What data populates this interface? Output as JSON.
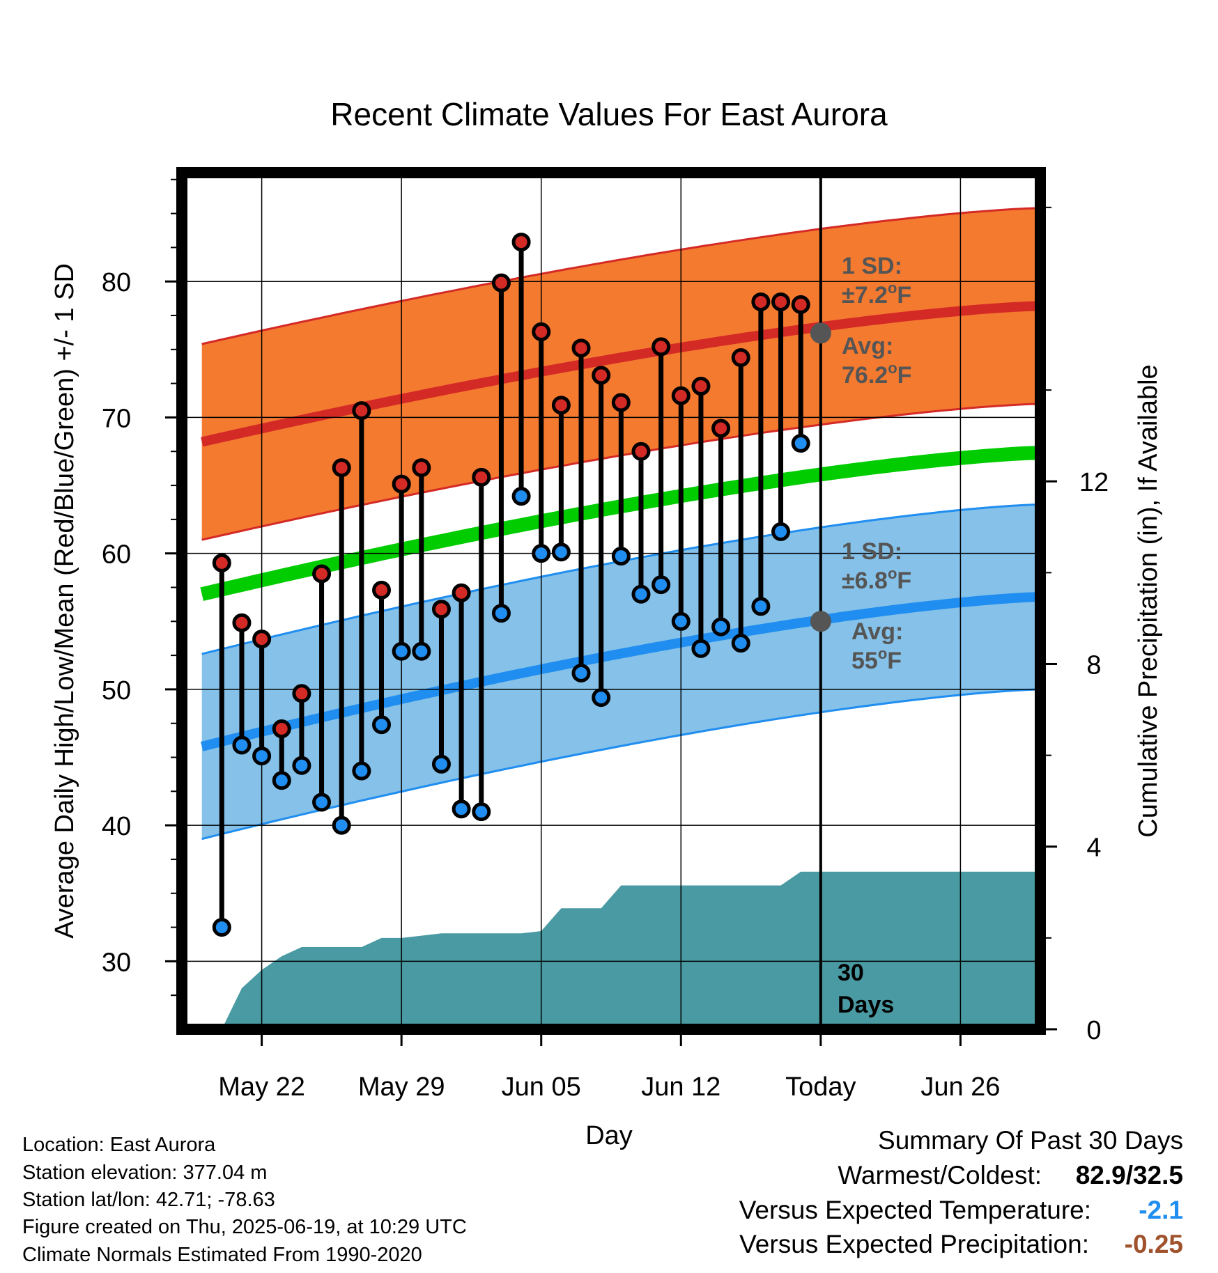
{
  "chart_data": {
    "type": "line",
    "title": "Recent Climate Values For East Aurora",
    "xlabel": "Day",
    "ylabel_left": "Average Daily High/Low/Mean (Red/Blue/Green) +/- 1 SD",
    "ylabel_right": "Cumulative Precipitation (in), If Available",
    "ylim_left": [
      25,
      88
    ],
    "ylim_right": [
      0,
      18.76
    ],
    "yticks_left": [
      "30",
      "40",
      "50",
      "60",
      "70",
      "80"
    ],
    "yticks_right": [
      "0",
      "4",
      "8",
      "12"
    ],
    "xlim": [
      "2025-05-18",
      "2025-06-30"
    ],
    "xticks": [
      {
        "date": "2025-05-22",
        "label": "May 22"
      },
      {
        "date": "2025-05-29",
        "label": "May 29"
      },
      {
        "date": "2025-06-05",
        "label": "Jun 05"
      },
      {
        "date": "2025-06-12",
        "label": "Jun 12"
      },
      {
        "date": "2025-06-19",
        "label": "Today"
      },
      {
        "date": "2025-06-26",
        "label": "Jun 26"
      }
    ],
    "grid": true,
    "normal_high": {
      "start": 68.2,
      "end": 78.2,
      "sd": 7.2,
      "today": 76.2
    },
    "normal_mean": {
      "start": 57.0,
      "end": 67.4
    },
    "normal_low": {
      "start": 45.8,
      "end": 56.8,
      "sd": 6.8,
      "today": 55
    },
    "series": [
      {
        "name": "High",
        "dates": [
          "2025-05-20",
          "2025-05-21",
          "2025-05-22",
          "2025-05-23",
          "2025-05-24",
          "2025-05-25",
          "2025-05-26",
          "2025-05-27",
          "2025-05-28",
          "2025-05-29",
          "2025-05-30",
          "2025-05-31",
          "2025-06-01",
          "2025-06-02",
          "2025-06-03",
          "2025-06-04",
          "2025-06-05",
          "2025-06-06",
          "2025-06-07",
          "2025-06-08",
          "2025-06-09",
          "2025-06-10",
          "2025-06-11",
          "2025-06-12",
          "2025-06-13",
          "2025-06-14",
          "2025-06-15",
          "2025-06-16",
          "2025-06-17",
          "2025-06-18"
        ],
        "values": [
          59.3,
          54.9,
          53.7,
          47.1,
          49.7,
          58.5,
          66.3,
          70.5,
          57.3,
          65.1,
          66.3,
          55.9,
          57.1,
          65.6,
          79.9,
          82.9,
          76.3,
          70.9,
          75.1,
          73.1,
          71.1,
          67.5,
          75.2,
          71.6,
          72.3,
          69.2,
          74.4,
          78.5,
          78.5,
          78.3
        ]
      },
      {
        "name": "Low",
        "dates": [
          "2025-05-20",
          "2025-05-21",
          "2025-05-22",
          "2025-05-23",
          "2025-05-24",
          "2025-05-25",
          "2025-05-26",
          "2025-05-27",
          "2025-05-28",
          "2025-05-29",
          "2025-05-30",
          "2025-05-31",
          "2025-06-01",
          "2025-06-02",
          "2025-06-03",
          "2025-06-04",
          "2025-06-05",
          "2025-06-06",
          "2025-06-07",
          "2025-06-08",
          "2025-06-09",
          "2025-06-10",
          "2025-06-11",
          "2025-06-12",
          "2025-06-13",
          "2025-06-14",
          "2025-06-15",
          "2025-06-16",
          "2025-06-17",
          "2025-06-18"
        ],
        "values": [
          32.5,
          45.9,
          45.1,
          43.3,
          44.4,
          41.7,
          40.0,
          44.0,
          47.4,
          52.8,
          52.8,
          44.5,
          41.2,
          41.0,
          55.6,
          64.2,
          60.0,
          60.1,
          51.2,
          49.4,
          59.8,
          57.0,
          57.7,
          55.0,
          53.0,
          54.6,
          53.4,
          56.1,
          61.6,
          68.1
        ]
      },
      {
        "name": "Cumulative Precipitation",
        "dates": [
          "2025-05-20",
          "2025-05-21",
          "2025-05-22",
          "2025-05-23",
          "2025-05-24",
          "2025-05-25",
          "2025-05-26",
          "2025-05-27",
          "2025-05-28",
          "2025-05-29",
          "2025-05-30",
          "2025-05-31",
          "2025-06-01",
          "2025-06-02",
          "2025-06-03",
          "2025-06-04",
          "2025-06-05",
          "2025-06-06",
          "2025-06-07",
          "2025-06-08",
          "2025-06-09",
          "2025-06-10",
          "2025-06-11",
          "2025-06-12",
          "2025-06-13",
          "2025-06-14",
          "2025-06-15",
          "2025-06-16",
          "2025-06-17",
          "2025-06-18",
          "2025-06-19",
          "2025-06-30"
        ],
        "values": [
          0.0,
          0.9,
          1.3,
          1.6,
          1.8,
          1.8,
          1.8,
          1.8,
          2.0,
          2.0,
          2.05,
          2.1,
          2.1,
          2.1,
          2.1,
          2.1,
          2.15,
          2.65,
          2.65,
          2.65,
          3.15,
          3.15,
          3.15,
          3.15,
          3.15,
          3.15,
          3.15,
          3.15,
          3.15,
          3.45,
          3.45,
          3.45
        ]
      }
    ],
    "annotations": {
      "high_sd_label": "1 SD:",
      "high_sd_value": "±7.2",
      "high_avg_label": "Avg:",
      "high_avg_value": "76.2",
      "low_sd_label": "1 SD:",
      "low_sd_value": "±6.8",
      "low_avg_label": "Avg:",
      "low_avg_value": "55",
      "degree": "o",
      "unit": "F",
      "window_number": "30",
      "window_unit": "Days"
    }
  },
  "footer": {
    "location": "Location: East Aurora",
    "elevation": "Station elevation: 377.04 m",
    "latlon": "Station lat/lon: 42.71; -78.63",
    "created": "Figure created on Thu, 2025-06-19, at 10:29 UTC",
    "normals": "Climate Normals Estimated From 1990-2020"
  },
  "summary": {
    "title": "Summary Of Past 30 Days",
    "warm_cold_label": "Warmest/Coldest:",
    "warm_cold_value": "82.9/32.5",
    "temp_label": "Versus Expected Temperature:",
    "temp_value": "-2.1",
    "precip_label": "Versus Expected Precipitation:",
    "precip_value": "-0.25"
  },
  "colors": {
    "high": "#d42a26",
    "high_band": "#f47a30",
    "low": "#1f8ef0",
    "low_band": "#85c1e8",
    "mean": "#00cc00",
    "precip": "#4a9aa3",
    "annotation": "#555555",
    "temp_value": "#1f8ef0",
    "precip_value": "#a0522d"
  }
}
